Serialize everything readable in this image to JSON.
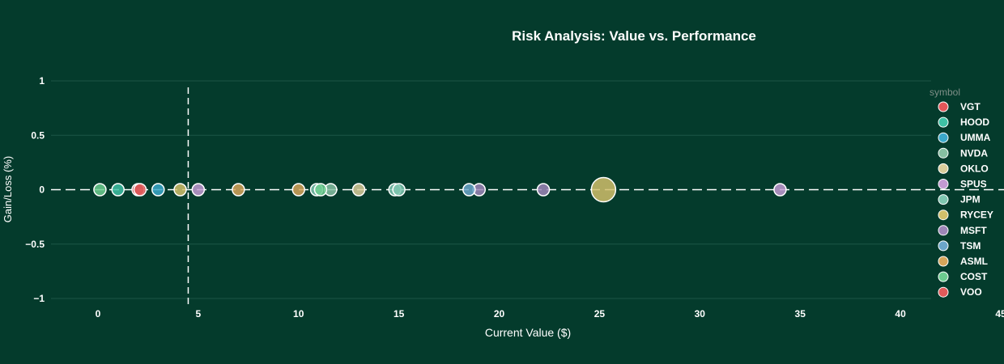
{
  "chart_data": {
    "type": "scatter",
    "title": "Risk Analysis: Value vs. Performance",
    "xlabel": "Current Value ($)",
    "ylabel": "Gain/Loss (%)",
    "xlim": [
      -2.5,
      45
    ],
    "ylim": [
      -1,
      1
    ],
    "x_ticks": [
      0,
      5,
      10,
      15,
      20,
      25,
      30,
      35,
      40,
      45
    ],
    "y_ticks": [
      1,
      0.5,
      0,
      -0.5,
      -1
    ],
    "y_tick_labels": [
      "1",
      "0.5",
      "0",
      "−0.5",
      "−1"
    ],
    "grid": true,
    "legend_title": "symbol",
    "legend_position": "right",
    "reference_lines": {
      "x": 4.5,
      "y": 0
    },
    "series": [
      {
        "name": "VGT",
        "color": "#e15759",
        "points": [
          {
            "x": 2.0,
            "y": 0
          }
        ]
      },
      {
        "name": "HOOD",
        "color": "#3fc1a5",
        "points": [
          {
            "x": 1.0,
            "y": 0
          }
        ]
      },
      {
        "name": "UMMA",
        "color": "#3ba8c9",
        "points": [
          {
            "x": 3.0,
            "y": 0
          }
        ]
      },
      {
        "name": "NVDA",
        "color": "#86bfa2",
        "points": [
          {
            "x": 11.6,
            "y": 0
          }
        ]
      },
      {
        "name": "OKLO",
        "color": "#d9cc9a",
        "points": [
          {
            "x": 13.0,
            "y": 0
          }
        ]
      },
      {
        "name": "SPUS",
        "color": "#c39bd3",
        "points": [
          {
            "x": 5.0,
            "y": 0
          },
          {
            "x": 34.0,
            "y": 0
          }
        ]
      },
      {
        "name": "JPM",
        "color": "#7fc7b0",
        "points": [
          {
            "x": 14.8,
            "y": 0
          },
          {
            "x": 15.0,
            "y": 0
          },
          {
            "x": 10.9,
            "y": 0
          }
        ]
      },
      {
        "name": "RYCEY",
        "color": "#d1c06b",
        "points": [
          {
            "x": 4.1,
            "y": 0
          },
          {
            "x": 25.2,
            "y": 0,
            "size": 15
          }
        ]
      },
      {
        "name": "MSFT",
        "color": "#9d86b8",
        "points": [
          {
            "x": 19.0,
            "y": 0
          },
          {
            "x": 22.2,
            "y": 0
          }
        ]
      },
      {
        "name": "TSM",
        "color": "#6ba6c9",
        "points": [
          {
            "x": 18.5,
            "y": 0
          }
        ]
      },
      {
        "name": "ASML",
        "color": "#d6a55a",
        "points": [
          {
            "x": 7.0,
            "y": 0
          },
          {
            "x": 10.0,
            "y": 0
          }
        ]
      },
      {
        "name": "COST",
        "color": "#6ccc8f",
        "points": [
          {
            "x": 0.1,
            "y": 0
          },
          {
            "x": 11.1,
            "y": 0
          }
        ]
      },
      {
        "name": "VOO",
        "color": "#e05a5a",
        "points": [
          {
            "x": 2.1,
            "y": 0
          }
        ]
      }
    ]
  }
}
